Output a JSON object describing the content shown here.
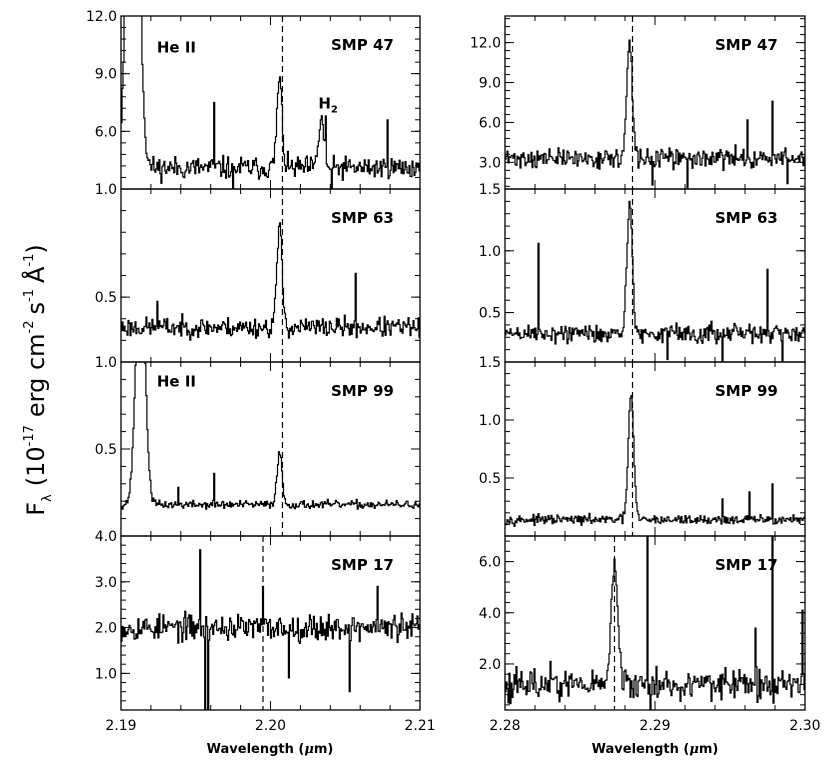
{
  "chart_data": {
    "type": "line",
    "ylabel_parts": {
      "f": "F",
      "lambda": "λ",
      "open": "(10",
      "exp1": "-17",
      "erg": "erg cm",
      "exp2": "-2",
      "s": "s",
      "exp3": "-1",
      "ang": "Å",
      "exp4": "-1",
      "close": ")"
    },
    "columns": [
      {
        "xlabel_pre": "Wavelength (",
        "xlabel_mu": "μ",
        "xlabel_post": "m)",
        "xlim": [
          2.19,
          2.21
        ],
        "xticks": [
          2.19,
          2.2,
          2.21
        ],
        "xtick_labels": [
          "2.19",
          "2.20",
          "2.21"
        ]
      },
      {
        "xlabel_pre": "Wavelength (",
        "xlabel_mu": "μ",
        "xlabel_post": "m)",
        "xlim": [
          2.28,
          2.3
        ],
        "xticks": [
          2.28,
          2.29,
          2.3
        ],
        "xtick_labels": [
          "2.28",
          "2.29",
          "2.30"
        ]
      }
    ],
    "panels": [
      {
        "col": 0,
        "row": 0,
        "title": "SMP 47",
        "ylim": [
          3.0,
          12.0
        ],
        "yticks": [
          6.0,
          9.0,
          12.0
        ],
        "ytick_labels": [
          "6.0",
          "9.0",
          "12.0"
        ],
        "dashed_x": 2.2008,
        "baseline": 4.1,
        "noise": 0.45,
        "seed": 11,
        "lines": [
          {
            "x": 2.1908,
            "amp": 30.0,
            "sigma": 0.00035
          },
          {
            "x": 2.2006,
            "amp": 4.6,
            "sigma": 0.00017
          },
          {
            "x": 2.2034,
            "amp": 2.6,
            "sigma": 0.00017
          }
        ],
        "spikes": [
          {
            "x": 2.1962,
            "v": 7.5
          },
          {
            "x": 2.2078,
            "v": 6.6
          },
          {
            "x": 2.2037,
            "v": 6.8
          },
          {
            "x": 2.2041,
            "v": 2.4
          },
          {
            "x": 2.1975,
            "v": 3.0
          }
        ],
        "annotations": [
          {
            "text": "He II",
            "x": 2.1924,
            "y": 10.1
          },
          {
            "text": "H",
            "sub": "2",
            "x": 2.2032,
            "y": 7.2
          }
        ]
      },
      {
        "col": 0,
        "row": 1,
        "title": "SMP 63",
        "ylim": [
          0.2,
          1.0
        ],
        "yticks": [
          0.5,
          1.0
        ],
        "ytick_labels": [
          "0.5",
          "1.0"
        ],
        "dashed_x": 2.2008,
        "baseline": 0.36,
        "noise": 0.035,
        "seed": 23,
        "lines": [
          {
            "x": 2.2006,
            "amp": 0.45,
            "sigma": 0.00018
          }
        ],
        "spikes": [
          {
            "x": 2.2057,
            "v": 0.61
          },
          {
            "x": 2.1924,
            "v": 0.48
          }
        ],
        "annotations": []
      },
      {
        "col": 0,
        "row": 2,
        "title": "SMP 99",
        "ylim": [
          0.0,
          1.0
        ],
        "yticks": [
          0.5,
          1.0
        ],
        "ytick_labels": [
          "0.5",
          "1.0"
        ],
        "dashed_x": 2.2008,
        "baseline": 0.18,
        "noise": 0.018,
        "seed": 37,
        "lines": [
          {
            "x": 2.1913,
            "amp": 1.5,
            "sigma": 0.0003
          },
          {
            "x": 2.2006,
            "amp": 0.3,
            "sigma": 0.00017
          }
        ],
        "spikes": [
          {
            "x": 2.1962,
            "v": 0.36
          },
          {
            "x": 2.1938,
            "v": 0.28
          }
        ],
        "annotations": [
          {
            "text": "He II",
            "x": 2.1924,
            "y": 0.86
          }
        ]
      },
      {
        "col": 0,
        "row": 3,
        "title": "SMP 17",
        "ylim": [
          0.2,
          4.0
        ],
        "yticks": [
          1.0,
          2.0,
          3.0,
          4.0
        ],
        "ytick_labels": [
          "1.0",
          "2.0",
          "3.0",
          "4.0"
        ],
        "dashed_x": 2.1995,
        "baseline": 2.0,
        "noise": 0.22,
        "seed": 53,
        "lines": [],
        "spikes": [
          {
            "x": 2.1953,
            "v": 3.7
          },
          {
            "x": 2.1956,
            "v": 0.1
          },
          {
            "x": 2.1958,
            "v": 0.0
          },
          {
            "x": 2.2072,
            "v": 2.9
          },
          {
            "x": 2.2053,
            "v": 0.6
          },
          {
            "x": 2.1995,
            "v": 2.9
          },
          {
            "x": 2.2012,
            "v": 0.9
          }
        ],
        "annotations": []
      },
      {
        "col": 1,
        "row": 0,
        "title": "SMP 47",
        "ylim": [
          1.0,
          14.0
        ],
        "yticks": [
          3.0,
          6.0,
          9.0,
          12.0
        ],
        "ytick_labels": [
          "3.0",
          "6.0",
          "9.0",
          "12.0"
        ],
        "dashed_x": 2.2885,
        "baseline": 3.3,
        "noise": 0.55,
        "seed": 71,
        "lines": [
          {
            "x": 2.2883,
            "amp": 8.6,
            "sigma": 0.00018
          }
        ],
        "spikes": [
          {
            "x": 2.2978,
            "v": 7.6
          },
          {
            "x": 2.2962,
            "v": 6.2
          },
          {
            "x": 2.2922,
            "v": 1.1
          },
          {
            "x": 2.2898,
            "v": 1.3
          },
          {
            "x": 2.2988,
            "v": 1.4
          }
        ],
        "annotations": []
      },
      {
        "col": 1,
        "row": 1,
        "title": "SMP 63",
        "ylim": [
          0.1,
          1.5
        ],
        "yticks": [
          0.5,
          1.0,
          1.5
        ],
        "ytick_labels": [
          "0.5",
          "1.0",
          "1.5"
        ],
        "dashed_x": 2.2885,
        "baseline": 0.33,
        "noise": 0.06,
        "seed": 89,
        "lines": [
          {
            "x": 2.2883,
            "amp": 1.05,
            "sigma": 0.00018
          }
        ],
        "spikes": [
          {
            "x": 2.2822,
            "v": 1.06
          },
          {
            "x": 2.2975,
            "v": 0.85
          },
          {
            "x": 2.2945,
            "v": 0.1
          },
          {
            "x": 2.2985,
            "v": 0.1
          },
          {
            "x": 2.2908,
            "v": 0.12
          }
        ],
        "annotations": []
      },
      {
        "col": 1,
        "row": 2,
        "title": "SMP 99",
        "ylim": [
          0.0,
          1.5
        ],
        "yticks": [
          0.5,
          1.0,
          1.5
        ],
        "ytick_labels": [
          "0.5",
          "1.0",
          "1.5"
        ],
        "dashed_x": 2.2885,
        "baseline": 0.14,
        "noise": 0.03,
        "seed": 97,
        "lines": [
          {
            "x": 2.2884,
            "amp": 1.08,
            "sigma": 0.00018
          }
        ],
        "spikes": [
          {
            "x": 2.2978,
            "v": 0.45
          },
          {
            "x": 2.2963,
            "v": 0.38
          },
          {
            "x": 2.2945,
            "v": 0.32
          }
        ],
        "annotations": []
      },
      {
        "col": 1,
        "row": 3,
        "title": "SMP 17",
        "ylim": [
          0.2,
          7.0
        ],
        "yticks": [
          2.0,
          4.0,
          6.0
        ],
        "ytick_labels": [
          "2.0",
          "4.0",
          "6.0"
        ],
        "dashed_x": 2.2873,
        "baseline": 1.2,
        "noise": 0.45,
        "seed": 113,
        "lines": [
          {
            "x": 2.2873,
            "amp": 4.6,
            "sigma": 0.00022
          }
        ],
        "spikes": [
          {
            "x": 2.2895,
            "v": 7.2
          },
          {
            "x": 2.2897,
            "v": 0.2
          },
          {
            "x": 2.2978,
            "v": 7.0
          },
          {
            "x": 2.2998,
            "v": 4.1
          },
          {
            "x": 2.2967,
            "v": 3.4
          },
          {
            "x": 2.283,
            "v": 2.1
          }
        ],
        "annotations": []
      }
    ]
  }
}
